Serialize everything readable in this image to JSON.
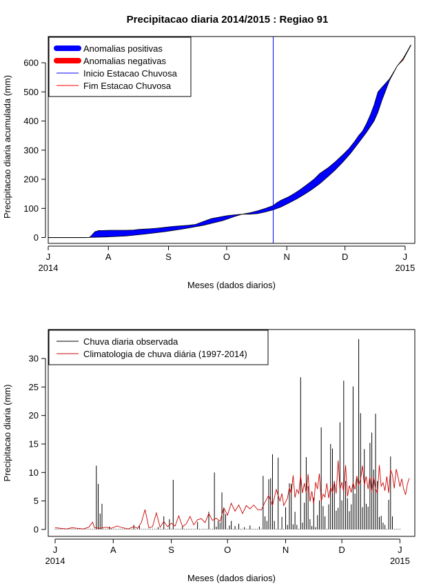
{
  "chart_data": [
    {
      "type": "area",
      "title": "Precipitacao diaria 2014/2015 : Regiao 91",
      "xlabel": "Meses (dados diarios)",
      "ylabel": "Precipitacao diaria acumulada (mm)",
      "xlim": [
        0,
        189
      ],
      "ylim": [
        -20,
        690
      ],
      "month_ticks": [
        {
          "day": 0,
          "label": "J"
        },
        {
          "day": 31,
          "label": "A"
        },
        {
          "day": 62,
          "label": "S"
        },
        {
          "day": 92,
          "label": "O"
        },
        {
          "day": 123,
          "label": "N"
        },
        {
          "day": 153,
          "label": "D"
        },
        {
          "day": 184,
          "label": "J"
        }
      ],
      "year_labels": [
        {
          "day": 0,
          "label": "2014"
        },
        {
          "day": 184,
          "label": "2015"
        }
      ],
      "yticks": [
        0,
        100,
        200,
        300,
        400,
        500,
        600
      ],
      "rainy_season_start_day": 116,
      "legend": {
        "position": "top-left",
        "entries": [
          {
            "label": "Anomalias positivas",
            "color": "#0000ff",
            "style": "thick"
          },
          {
            "label": "Anomalias negativas",
            "color": "#ff0000",
            "style": "thick"
          },
          {
            "label": "Inicio Estacao Chuvosa",
            "color": "#0000ff",
            "style": "line"
          },
          {
            "label": "Fim Estacao Chuvosa",
            "color": "#ff0000",
            "style": "line"
          }
        ]
      },
      "observed_cumulative": [
        [
          0,
          0
        ],
        [
          21,
          0
        ],
        [
          22,
          5
        ],
        [
          23,
          12
        ],
        [
          24,
          20
        ],
        [
          25,
          22
        ],
        [
          26,
          24
        ],
        [
          28,
          24
        ],
        [
          32,
          25
        ],
        [
          36,
          25
        ],
        [
          40,
          25
        ],
        [
          44,
          26
        ],
        [
          47,
          28
        ],
        [
          52,
          30
        ],
        [
          56,
          32
        ],
        [
          60,
          35
        ],
        [
          64,
          38
        ],
        [
          68,
          40
        ],
        [
          72,
          42
        ],
        [
          76,
          45
        ],
        [
          80,
          55
        ],
        [
          84,
          65
        ],
        [
          88,
          70
        ],
        [
          92,
          75
        ],
        [
          96,
          78
        ],
        [
          100,
          80
        ],
        [
          104,
          85
        ],
        [
          108,
          92
        ],
        [
          112,
          100
        ],
        [
          116,
          110
        ],
        [
          118,
          120
        ],
        [
          120,
          128
        ],
        [
          124,
          140
        ],
        [
          127,
          152
        ],
        [
          130,
          165
        ],
        [
          134,
          185
        ],
        [
          137,
          200
        ],
        [
          140,
          220
        ],
        [
          144,
          238
        ],
        [
          148,
          260
        ],
        [
          152,
          285
        ],
        [
          155,
          305
        ],
        [
          158,
          330
        ],
        [
          160,
          350
        ],
        [
          162,
          365
        ],
        [
          164,
          390
        ],
        [
          166,
          420
        ],
        [
          168,
          455
        ],
        [
          170,
          500
        ],
        [
          172,
          515
        ],
        [
          176,
          545
        ],
        [
          180,
          590
        ],
        [
          183,
          610
        ],
        [
          185,
          635
        ],
        [
          187,
          660
        ]
      ],
      "climatology_cumulative": [
        [
          0,
          0
        ],
        [
          20,
          0
        ],
        [
          30,
          2
        ],
        [
          40,
          5
        ],
        [
          50,
          12
        ],
        [
          60,
          20
        ],
        [
          70,
          30
        ],
        [
          80,
          42
        ],
        [
          90,
          58
        ],
        [
          96,
          72
        ],
        [
          100,
          80
        ],
        [
          104,
          80
        ],
        [
          108,
          82
        ],
        [
          112,
          88
        ],
        [
          116,
          95
        ],
        [
          120,
          105
        ],
        [
          124,
          118
        ],
        [
          128,
          132
        ],
        [
          132,
          148
        ],
        [
          136,
          165
        ],
        [
          140,
          185
        ],
        [
          144,
          208
        ],
        [
          148,
          232
        ],
        [
          152,
          260
        ],
        [
          156,
          290
        ],
        [
          160,
          325
        ],
        [
          164,
          360
        ],
        [
          168,
          400
        ],
        [
          170,
          430
        ],
        [
          172,
          470
        ],
        [
          176,
          540
        ],
        [
          180,
          590
        ],
        [
          183,
          615
        ],
        [
          185,
          638
        ],
        [
          187,
          662
        ]
      ],
      "colors": {
        "positive": "#0000ff",
        "negative": "#ff0000",
        "season_line": "#0000ff"
      }
    },
    {
      "type": "bar",
      "title": "",
      "xlabel": "Meses (dados diarios)",
      "ylabel": "Precipitacao diaria (mm)",
      "xlim": [
        0,
        189
      ],
      "ylim": [
        0,
        34
      ],
      "month_ticks": [
        {
          "day": 0,
          "label": "J"
        },
        {
          "day": 31,
          "label": "A"
        },
        {
          "day": 62,
          "label": "S"
        },
        {
          "day": 92,
          "label": "O"
        },
        {
          "day": 123,
          "label": "N"
        },
        {
          "day": 153,
          "label": "D"
        },
        {
          "day": 184,
          "label": "J"
        }
      ],
      "year_labels": [
        {
          "day": 0,
          "label": "2014"
        },
        {
          "day": 184,
          "label": "2015"
        }
      ],
      "yticks": [
        0,
        5,
        10,
        15,
        20,
        25,
        30
      ],
      "legend": {
        "position": "top-left",
        "entries": [
          {
            "label": "Chuva diaria observada",
            "color": "#000000",
            "style": "line"
          },
          {
            "label": "Climatologia de chuva diária (1997-2014)",
            "color": "#cc0000",
            "style": "line"
          }
        ]
      },
      "observed_bars": [
        [
          22,
          11.2
        ],
        [
          23,
          8
        ],
        [
          24,
          2.8
        ],
        [
          25,
          4.5
        ],
        [
          29,
          0.5
        ],
        [
          42,
          0.8
        ],
        [
          45,
          0.6
        ],
        [
          55,
          0.4
        ],
        [
          58,
          2.3
        ],
        [
          61,
          1.8
        ],
        [
          63,
          8.7
        ],
        [
          68,
          0.6
        ],
        [
          76,
          1.3
        ],
        [
          82,
          3.1
        ],
        [
          85,
          10
        ],
        [
          86,
          0.5
        ],
        [
          87,
          1.5
        ],
        [
          88,
          1.2
        ],
        [
          89,
          6.5
        ],
        [
          90,
          3.8
        ],
        [
          91,
          2.7
        ],
        [
          93,
          0.7
        ],
        [
          94,
          1.5
        ],
        [
          96,
          0.6
        ],
        [
          98,
          1
        ],
        [
          101,
          0.4
        ],
        [
          104,
          0.7
        ],
        [
          109,
          0.5
        ],
        [
          111,
          9.4
        ],
        [
          112,
          2.3
        ],
        [
          113,
          1.5
        ],
        [
          114,
          8.8
        ],
        [
          115,
          9
        ],
        [
          116,
          13.2
        ],
        [
          117,
          1.5
        ],
        [
          119,
          12.6
        ],
        [
          121,
          2.2
        ],
        [
          123,
          3.9
        ],
        [
          124,
          0.8
        ],
        [
          125,
          8.1
        ],
        [
          126,
          8
        ],
        [
          127,
          0.9
        ],
        [
          128,
          3.1
        ],
        [
          129,
          0.8
        ],
        [
          131,
          26.7
        ],
        [
          132,
          1.2
        ],
        [
          133,
          4.7
        ],
        [
          134,
          12.7
        ],
        [
          135,
          7.6
        ],
        [
          136,
          1.8
        ],
        [
          137,
          0.6
        ],
        [
          138,
          5.6
        ],
        [
          139,
          0.4
        ],
        [
          140,
          2.5
        ],
        [
          141,
          5.1
        ],
        [
          142,
          17.9
        ],
        [
          143,
          4.1
        ],
        [
          144,
          2.3
        ],
        [
          146,
          4.4
        ],
        [
          147,
          15
        ],
        [
          148,
          14.2
        ],
        [
          149,
          8.5
        ],
        [
          150,
          3.3
        ],
        [
          151,
          3.8
        ],
        [
          152,
          18.8
        ],
        [
          153,
          5.1
        ],
        [
          154,
          26.1
        ],
        [
          155,
          8.5
        ],
        [
          156,
          5.5
        ],
        [
          157,
          3.2
        ],
        [
          158,
          4.4
        ],
        [
          159,
          25.1
        ],
        [
          160,
          6.3
        ],
        [
          161,
          8.9
        ],
        [
          162,
          33.4
        ],
        [
          163,
          20.4
        ],
        [
          164,
          3.9
        ],
        [
          165,
          14.1
        ],
        [
          166,
          4.5
        ],
        [
          167,
          4
        ],
        [
          168,
          15.2
        ],
        [
          169,
          17
        ],
        [
          170,
          10.5
        ],
        [
          171,
          20.3
        ],
        [
          172,
          8.5
        ],
        [
          173,
          2.2
        ],
        [
          174,
          2.4
        ],
        [
          175,
          1.2
        ],
        [
          176,
          0.8
        ],
        [
          178,
          5.2
        ],
        [
          179,
          12.8
        ],
        [
          180,
          2.3
        ]
      ],
      "climatology_line": [
        [
          0,
          0.3
        ],
        [
          3,
          0.2
        ],
        [
          6,
          0.1
        ],
        [
          9,
          0.3
        ],
        [
          12,
          0.2
        ],
        [
          15,
          0.1
        ],
        [
          18,
          0.4
        ],
        [
          20,
          1.3
        ],
        [
          21,
          0.3
        ],
        [
          24,
          0.2
        ],
        [
          27,
          0.4
        ],
        [
          30,
          0.2
        ],
        [
          33,
          0.6
        ],
        [
          36,
          0.3
        ],
        [
          39,
          0.1
        ],
        [
          42,
          0.5
        ],
        [
          44,
          0.2
        ],
        [
          46,
          1.2
        ],
        [
          48,
          3.5
        ],
        [
          50,
          0.3
        ],
        [
          52,
          0.5
        ],
        [
          54,
          2.9
        ],
        [
          56,
          0.4
        ],
        [
          58,
          1.4
        ],
        [
          60,
          0.5
        ],
        [
          62,
          1.1
        ],
        [
          64,
          0.6
        ],
        [
          66,
          2.4
        ],
        [
          68,
          0.5
        ],
        [
          70,
          1
        ],
        [
          72,
          2.3
        ],
        [
          74,
          0.8
        ],
        [
          76,
          1.7
        ],
        [
          78,
          1.9
        ],
        [
          80,
          1.2
        ],
        [
          82,
          2.8
        ],
        [
          84,
          1.6
        ],
        [
          86,
          2
        ],
        [
          88,
          1.4
        ],
        [
          90,
          3.8
        ],
        [
          92,
          2.5
        ],
        [
          94,
          4.6
        ],
        [
          96,
          3.2
        ],
        [
          98,
          4.3
        ],
        [
          100,
          2.8
        ],
        [
          102,
          4.2
        ],
        [
          104,
          3.6
        ],
        [
          106,
          4.3
        ],
        [
          108,
          3.5
        ],
        [
          110,
          3.4
        ],
        [
          112,
          4.8
        ],
        [
          114,
          6
        ],
        [
          116,
          4.2
        ],
        [
          118,
          7
        ],
        [
          120,
          5
        ],
        [
          121,
          6.3
        ],
        [
          122,
          4.2
        ],
        [
          124,
          5.5
        ],
        [
          125,
          7.3
        ],
        [
          126,
          6.3
        ],
        [
          127,
          9.5
        ],
        [
          128,
          5.6
        ],
        [
          129,
          7
        ],
        [
          130,
          6.3
        ],
        [
          131,
          9.5
        ],
        [
          132,
          6.4
        ],
        [
          133,
          8.1
        ],
        [
          134,
          6.4
        ],
        [
          135,
          9.7
        ],
        [
          136,
          4.9
        ],
        [
          137,
          6.7
        ],
        [
          138,
          4.5
        ],
        [
          139,
          8.3
        ],
        [
          140,
          7.1
        ],
        [
          141,
          9.8
        ],
        [
          142,
          4.9
        ],
        [
          143,
          6.2
        ],
        [
          144,
          5.7
        ],
        [
          145,
          8.1
        ],
        [
          146,
          5.5
        ],
        [
          147,
          7.4
        ],
        [
          148,
          6.5
        ],
        [
          149,
          8.4
        ],
        [
          150,
          6.3
        ],
        [
          151,
          12.1
        ],
        [
          152,
          7
        ],
        [
          153,
          8.3
        ],
        [
          154,
          6.6
        ],
        [
          155,
          11.3
        ],
        [
          156,
          5.8
        ],
        [
          157,
          7.7
        ],
        [
          158,
          6.5
        ],
        [
          159,
          8.2
        ],
        [
          160,
          7
        ],
        [
          161,
          9.4
        ],
        [
          162,
          7.8
        ],
        [
          163,
          8.8
        ],
        [
          164,
          11.2
        ],
        [
          165,
          7.8
        ],
        [
          166,
          9.3
        ],
        [
          167,
          7.1
        ],
        [
          168,
          9.3
        ],
        [
          169,
          6.5
        ],
        [
          170,
          9.2
        ],
        [
          171,
          7.2
        ],
        [
          172,
          6.3
        ],
        [
          173,
          11.3
        ],
        [
          174,
          7.6
        ],
        [
          175,
          8.2
        ],
        [
          176,
          6.8
        ],
        [
          177,
          9.3
        ],
        [
          178,
          6.4
        ],
        [
          179,
          10.5
        ],
        [
          180,
          9.6
        ],
        [
          181,
          7.2
        ],
        [
          182,
          10.6
        ],
        [
          183,
          9.2
        ],
        [
          184,
          7.5
        ],
        [
          185,
          8.9
        ],
        [
          186,
          7.1
        ],
        [
          187,
          6.1
        ],
        [
          188,
          8
        ],
        [
          189,
          9
        ]
      ],
      "colors": {
        "observed": "#000000",
        "climatology": "#cc0000"
      }
    }
  ]
}
